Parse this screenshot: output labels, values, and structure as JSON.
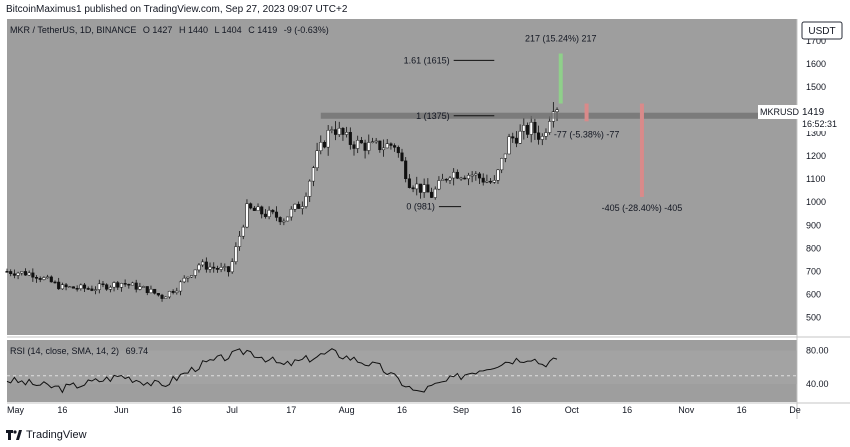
{
  "header": {
    "text": "BitcoinMaximus1 published on TradingView.com, Sep 27, 2023 09:07 UTC+2"
  },
  "legend": {
    "symbol": "MKR / TetherUS, 1D, BINANCE",
    "open": "O 1427",
    "high": "H 1440",
    "low": "L 1404",
    "close": "C 1419",
    "change": "-9 (-0.63%)"
  },
  "price_scale": {
    "currency": "USDT",
    "ticks": [
      "1700",
      "1600",
      "1500",
      "1400",
      "1300",
      "1200",
      "1100",
      "1000",
      "900",
      "800",
      "700",
      "600",
      "500"
    ]
  },
  "price_label": {
    "ticker": "MKRUSDT",
    "price": "1419",
    "countdown": "16:52:31"
  },
  "rsi_legend": {
    "name": "RSI (14, close, SMA, 14, 2)",
    "value": "69.74"
  },
  "rsi_scale": {
    "ticks": [
      "80.00",
      "40.00"
    ]
  },
  "time_axis": {
    "labels": [
      "May",
      "16",
      "Jun",
      "16",
      "Jul",
      "17",
      "Aug",
      "16",
      "Sep",
      "16",
      "Oct",
      "16",
      "Nov",
      "16",
      "De"
    ]
  },
  "annotations": {
    "fib_161": "1.61 (1615)",
    "fib_1": "1 (1375)",
    "fib_0": "0 (981)",
    "up_measure": "217 (15.24%) 217",
    "down_small": "-77 (-5.38%) -77",
    "down_big": "-405 (-28.40%) -405"
  },
  "footer": {
    "brand": "TradingView"
  },
  "colors": {
    "background": "#9e9e9e",
    "up_bar": "#ffffff",
    "down_bar": "#111111",
    "green_measure": "#8fd08a",
    "red_measure": "#d98a8a",
    "resistance": "#6f6f6f"
  },
  "chart_data": [
    {
      "type": "candlestick",
      "symbol": "MKR / TetherUS",
      "interval": "1D",
      "y_axis": {
        "unit": "USDT",
        "range": [
          450,
          1760
        ]
      },
      "x_axis": {
        "range_start": "2023-05-01",
        "range_end": "2023-12-01"
      },
      "approx_closes": [
        {
          "date": "2023-05-01",
          "close": 700
        },
        {
          "date": "2023-05-08",
          "close": 690
        },
        {
          "date": "2023-05-16",
          "close": 630
        },
        {
          "date": "2023-05-24",
          "close": 625
        },
        {
          "date": "2023-06-01",
          "close": 650
        },
        {
          "date": "2023-06-08",
          "close": 620
        },
        {
          "date": "2023-06-12",
          "close": 590
        },
        {
          "date": "2023-06-16",
          "close": 630
        },
        {
          "date": "2023-06-22",
          "close": 730
        },
        {
          "date": "2023-06-30",
          "close": 700
        },
        {
          "date": "2023-07-01",
          "close": 740
        },
        {
          "date": "2023-07-05",
          "close": 970
        },
        {
          "date": "2023-07-10",
          "close": 950
        },
        {
          "date": "2023-07-15",
          "close": 930
        },
        {
          "date": "2023-07-20",
          "close": 1000
        },
        {
          "date": "2023-07-24",
          "close": 1200
        },
        {
          "date": "2023-07-28",
          "close": 1330
        },
        {
          "date": "2023-08-02",
          "close": 1260
        },
        {
          "date": "2023-08-08",
          "close": 1240
        },
        {
          "date": "2023-08-14",
          "close": 1250
        },
        {
          "date": "2023-08-18",
          "close": 1090
        },
        {
          "date": "2023-08-24",
          "close": 1030
        },
        {
          "date": "2023-08-29",
          "close": 1130
        },
        {
          "date": "2023-09-04",
          "close": 1120
        },
        {
          "date": "2023-09-10",
          "close": 1080
        },
        {
          "date": "2023-09-14",
          "close": 1270
        },
        {
          "date": "2023-09-20",
          "close": 1320
        },
        {
          "date": "2023-09-23",
          "close": 1280
        },
        {
          "date": "2023-09-26",
          "close": 1428
        },
        {
          "date": "2023-09-27",
          "close": 1419
        }
      ],
      "levels": [
        {
          "label": "1.61 (1615)",
          "value": 1615
        },
        {
          "label": "1 (1375)",
          "value": 1375
        },
        {
          "label": "0 (981)",
          "value": 981
        }
      ],
      "measures": [
        {
          "label": "217 (15.24%) 217",
          "from": 1428,
          "to": 1645
        },
        {
          "label": "-77 (-5.38%) -77",
          "from": 1428,
          "to": 1351
        },
        {
          "label": "-405 (-28.40%) -405",
          "from": 1428,
          "to": 1023
        }
      ]
    },
    {
      "type": "line",
      "name": "RSI (14, close, SMA, 14, 2)",
      "y_axis": {
        "ticks": [
          80,
          40
        ]
      },
      "last_value": 69.74,
      "approx_values": [
        {
          "date": "2023-05-01",
          "value": 45
        },
        {
          "date": "2023-05-16",
          "value": 35
        },
        {
          "date": "2023-06-01",
          "value": 50
        },
        {
          "date": "2023-06-12",
          "value": 38
        },
        {
          "date": "2023-06-22",
          "value": 62
        },
        {
          "date": "2023-07-05",
          "value": 80
        },
        {
          "date": "2023-07-15",
          "value": 62
        },
        {
          "date": "2023-07-28",
          "value": 78
        },
        {
          "date": "2023-08-10",
          "value": 60
        },
        {
          "date": "2023-08-20",
          "value": 30
        },
        {
          "date": "2023-09-04",
          "value": 55
        },
        {
          "date": "2023-09-14",
          "value": 68
        },
        {
          "date": "2023-09-20",
          "value": 72
        },
        {
          "date": "2023-09-23",
          "value": 64
        },
        {
          "date": "2023-09-27",
          "value": 69.74
        }
      ]
    }
  ]
}
